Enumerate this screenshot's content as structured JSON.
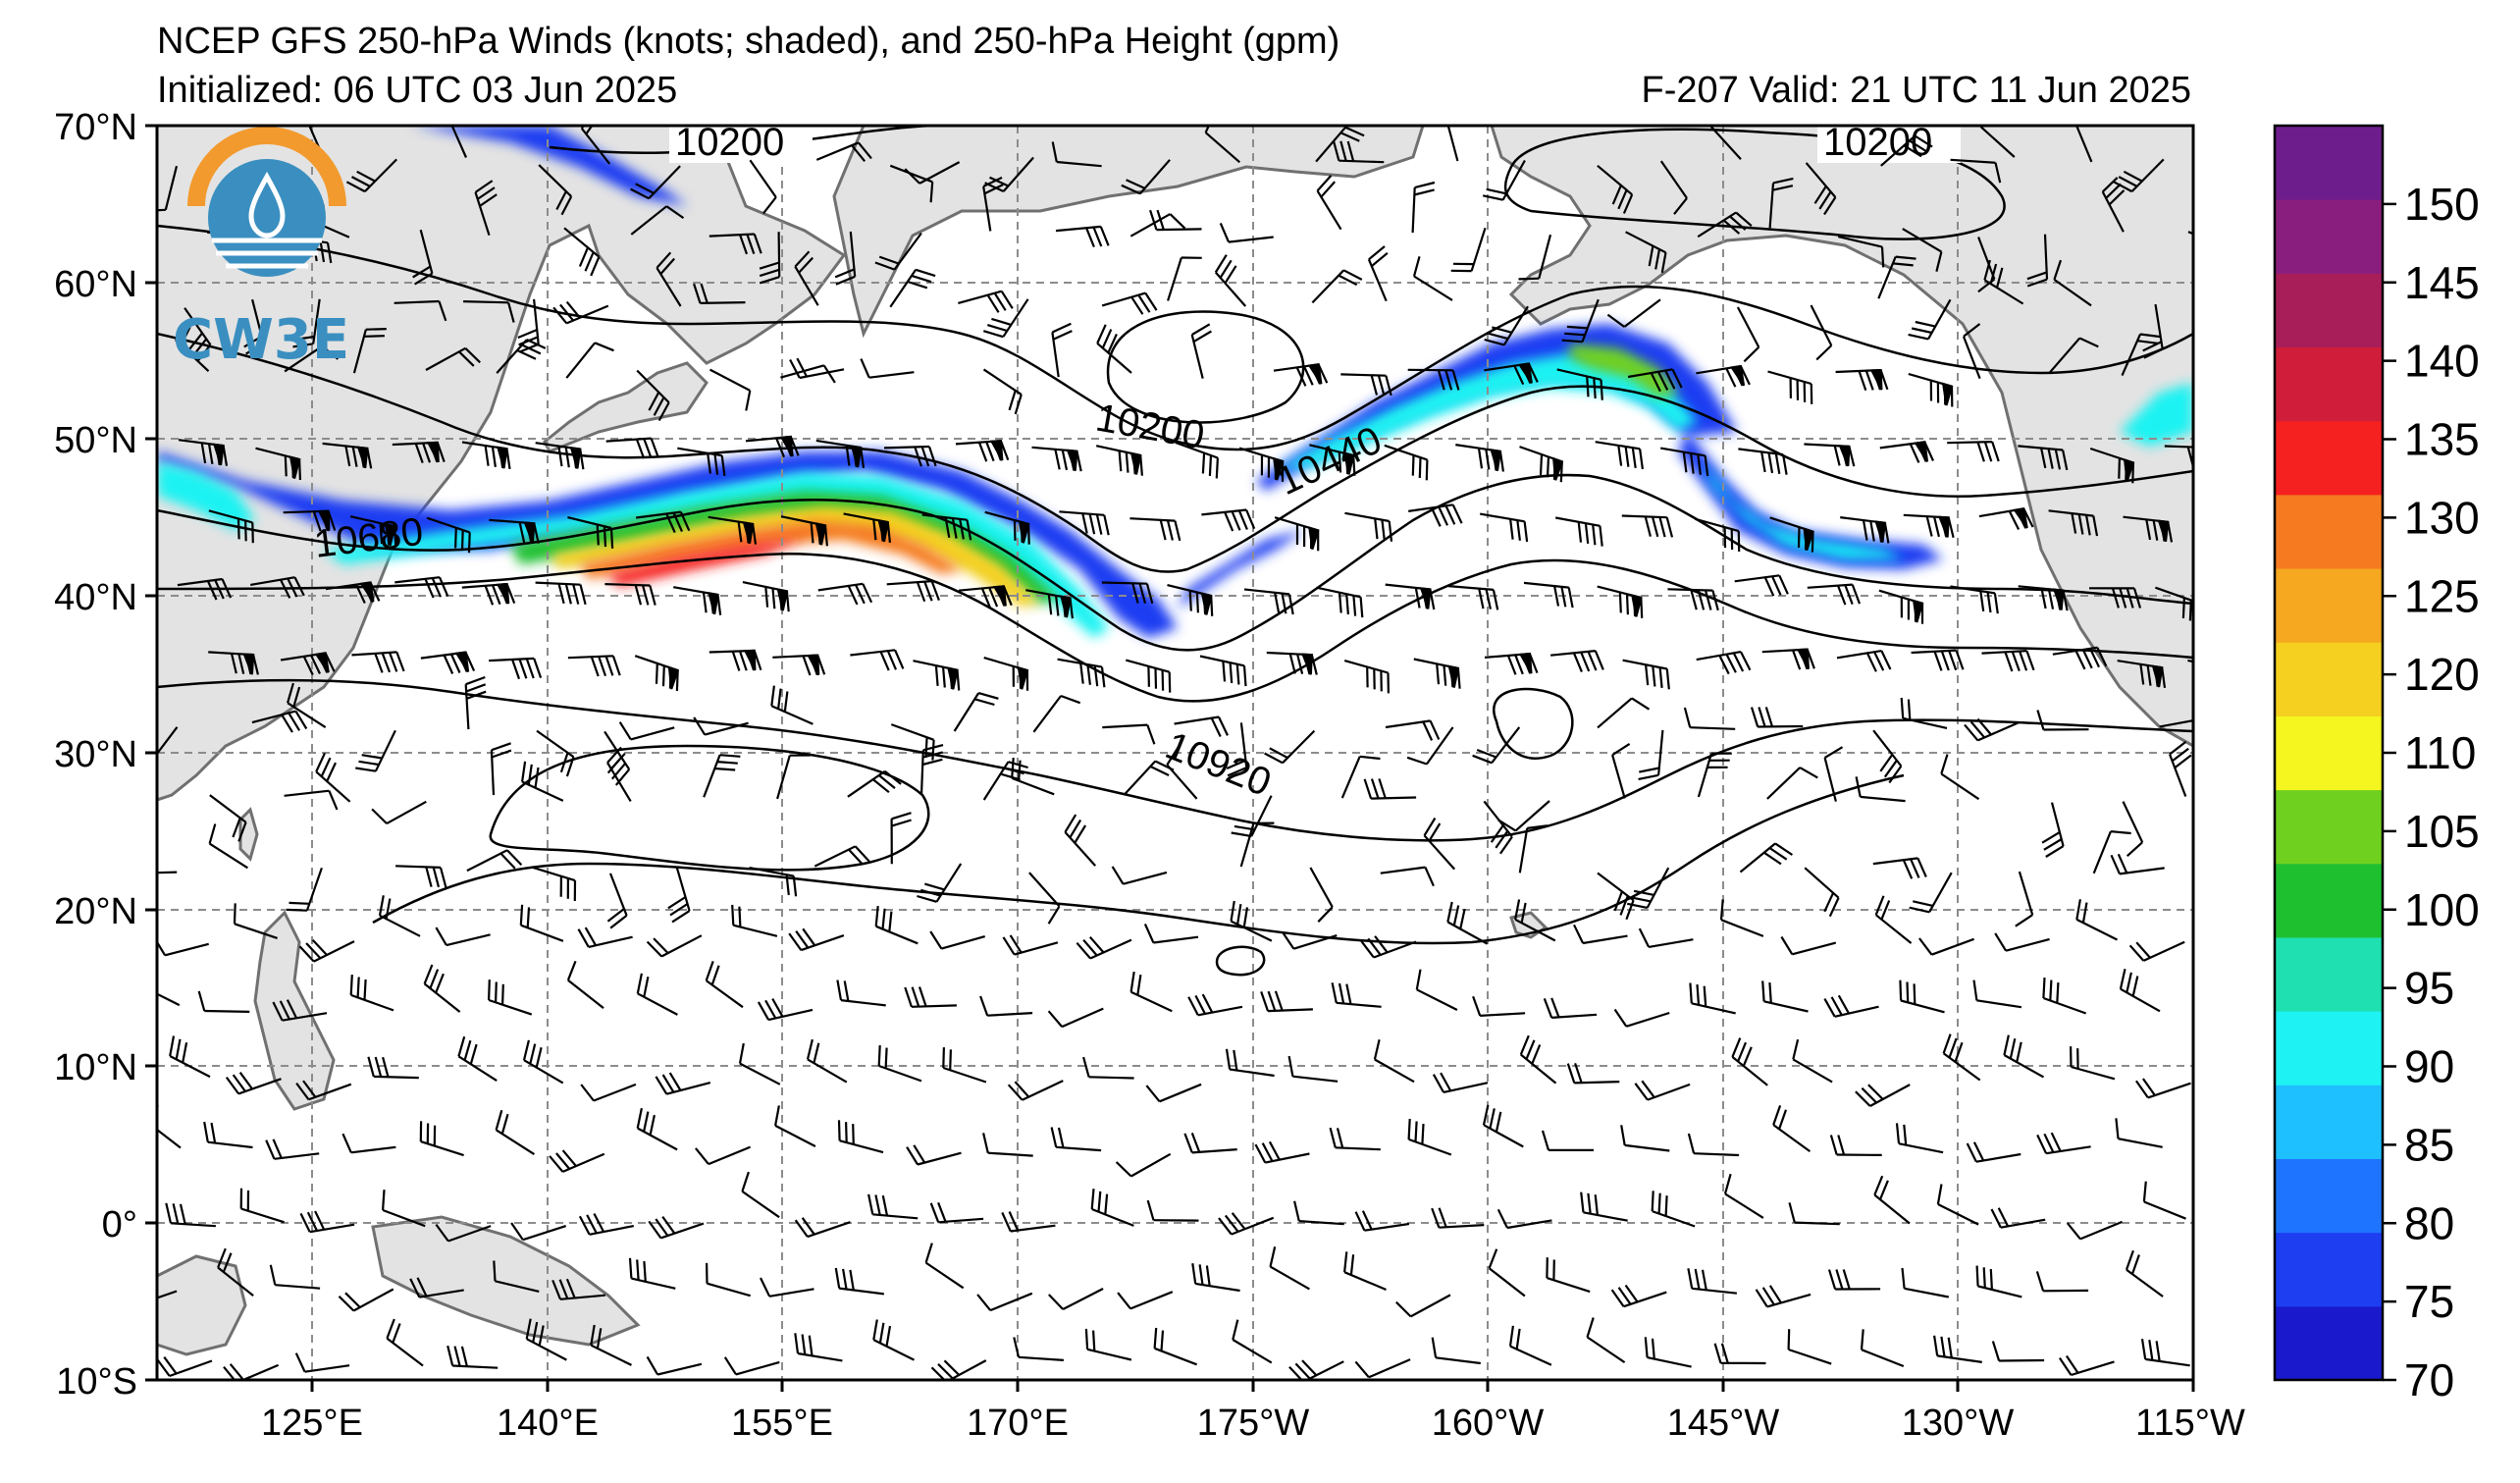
{
  "header": {
    "title": "NCEP GFS 250-hPa Winds (knots; shaded), and 250-hPa Height (gpm)",
    "initialized": "Initialized: 06 UTC 03 Jun 2025",
    "valid": "F-207  Valid: 21 UTC 11 Jun 2025"
  },
  "logo": {
    "text": "CW3E"
  },
  "axes": {
    "lat_labels": [
      "70°N",
      "60°N",
      "50°N",
      "40°N",
      "30°N",
      "20°N",
      "10°N",
      "0°",
      "10°S"
    ],
    "lon_labels": [
      "125°E",
      "140°E",
      "155°E",
      "170°E",
      "175°W",
      "160°W",
      "145°W",
      "130°W",
      "115°W"
    ]
  },
  "contours": {
    "units": "gpm",
    "labels": [
      "10200",
      "10200",
      "10200",
      "10440",
      "10680",
      "10920"
    ]
  },
  "colorbar": {
    "ticks": [
      "70",
      "75",
      "80",
      "85",
      "90",
      "95",
      "100",
      "105",
      "110",
      "120",
      "125",
      "130",
      "135",
      "140",
      "145",
      "150"
    ],
    "colors": [
      "#1a1acc",
      "#1e3ef2",
      "#1f74ff",
      "#1fc0ff",
      "#1ff2f2",
      "#1fe0b0",
      "#1fc030",
      "#70d020",
      "#f5f520",
      "#f5d020",
      "#f5a820",
      "#f57a20",
      "#f52020",
      "#d01e3a",
      "#a81e58",
      "#8a1e7e",
      "#6e1e8c"
    ]
  },
  "palette": {
    "land": "#e3e3e3",
    "coast": "#707070",
    "grid": "#8c8c8c",
    "logo_orange": "#f29a2e",
    "logo_blue": "#3a8fc0"
  }
}
